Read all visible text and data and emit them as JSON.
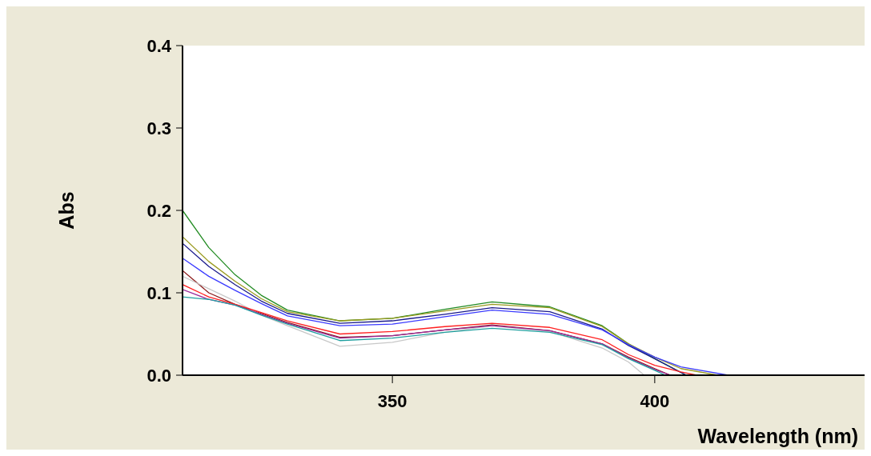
{
  "chart_data": {
    "type": "line",
    "xlabel": "Wavelength (nm)",
    "ylabel": "Abs",
    "xlim": [
      310,
      440
    ],
    "xticks": [
      350,
      400
    ],
    "ylim": [
      0,
      0.4
    ],
    "yticks": [
      {
        "value": 0,
        "label": "0.0"
      },
      {
        "value": 0.1,
        "label": "0.1"
      },
      {
        "value": 0.2,
        "label": "0.2"
      },
      {
        "value": 0.3,
        "label": "0.3"
      },
      {
        "value": 0.4,
        "label": "0.4"
      }
    ],
    "grid": false,
    "marker": "none",
    "line_style": "solid",
    "series": [
      {
        "color": "#228b22",
        "x": [
          310,
          315,
          320,
          325,
          330,
          340,
          350,
          360,
          369,
          380,
          390,
          395,
          400,
          406
        ],
        "values": [
          0.2,
          0.155,
          0.122,
          0.097,
          0.079,
          0.066,
          0.069,
          0.08,
          0.089,
          0.083,
          0.06,
          0.038,
          0.02,
          0
        ]
      },
      {
        "color": "#9a9a20",
        "x": [
          310,
          315,
          320,
          325,
          330,
          340,
          350,
          360,
          369,
          380,
          390,
          395,
          400,
          405,
          412
        ],
        "values": [
          0.168,
          0.138,
          0.114,
          0.093,
          0.077,
          0.066,
          0.069,
          0.078,
          0.086,
          0.082,
          0.059,
          0.038,
          0.022,
          0.008,
          0
        ]
      },
      {
        "color": "#1a1a8c",
        "x": [
          310,
          315,
          320,
          325,
          330,
          340,
          350,
          360,
          369,
          380,
          390,
          395,
          400,
          406
        ],
        "values": [
          0.16,
          0.132,
          0.11,
          0.09,
          0.075,
          0.063,
          0.066,
          0.074,
          0.082,
          0.077,
          0.056,
          0.036,
          0.02,
          0
        ]
      },
      {
        "color": "#3a3aff",
        "x": [
          310,
          315,
          320,
          325,
          330,
          340,
          350,
          360,
          369,
          380,
          390,
          395,
          400,
          405,
          414
        ],
        "values": [
          0.142,
          0.12,
          0.103,
          0.087,
          0.072,
          0.06,
          0.062,
          0.071,
          0.079,
          0.074,
          0.055,
          0.037,
          0.022,
          0.01,
          0
        ]
      },
      {
        "color": "#8b1a1a",
        "x": [
          310,
          315,
          320,
          325,
          330,
          340,
          350,
          360,
          369,
          380,
          390,
          395,
          400,
          403
        ],
        "values": [
          0.127,
          0.1,
          0.086,
          0.075,
          0.064,
          0.046,
          0.048,
          0.055,
          0.061,
          0.054,
          0.038,
          0.022,
          0.008,
          0
        ]
      },
      {
        "color": "#c8c8c8",
        "x": [
          310,
          315,
          320,
          325,
          330,
          340,
          350,
          360,
          369,
          380,
          390,
          395,
          398
        ],
        "values": [
          0.12,
          0.105,
          0.09,
          0.073,
          0.06,
          0.035,
          0.04,
          0.052,
          0.06,
          0.053,
          0.033,
          0.016,
          0
        ]
      },
      {
        "color": "#ff2020",
        "x": [
          310,
          315,
          320,
          325,
          330,
          340,
          350,
          360,
          369,
          380,
          390,
          395,
          400,
          405,
          408
        ],
        "values": [
          0.11,
          0.095,
          0.086,
          0.076,
          0.066,
          0.05,
          0.053,
          0.059,
          0.063,
          0.058,
          0.043,
          0.025,
          0.012,
          0.004,
          0
        ]
      },
      {
        "color": "#9a2a9a",
        "x": [
          310,
          315,
          320,
          325,
          330,
          340,
          350,
          360,
          369,
          380,
          390,
          395,
          400,
          403
        ],
        "values": [
          0.104,
          0.092,
          0.085,
          0.074,
          0.063,
          0.045,
          0.048,
          0.055,
          0.06,
          0.054,
          0.038,
          0.021,
          0.007,
          0
        ]
      },
      {
        "color": "#20a0a0",
        "x": [
          310,
          315,
          320,
          325,
          330,
          340,
          350,
          360,
          369,
          380,
          390,
          395,
          400,
          402
        ],
        "values": [
          0.095,
          0.092,
          0.085,
          0.073,
          0.062,
          0.042,
          0.045,
          0.052,
          0.057,
          0.052,
          0.037,
          0.02,
          0.006,
          0
        ]
      }
    ]
  }
}
